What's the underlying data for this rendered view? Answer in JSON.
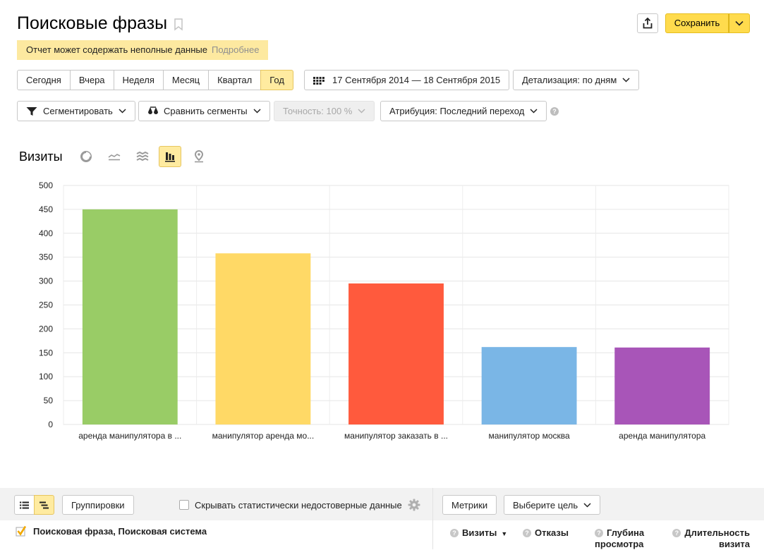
{
  "header": {
    "title": "Поисковые фразы",
    "save_label": "Сохранить"
  },
  "warning": {
    "text": "Отчет может содержать неполные данные",
    "link": "Подробнее"
  },
  "period": {
    "options": [
      "Сегодня",
      "Вчера",
      "Неделя",
      "Месяц",
      "Квартал",
      "Год"
    ],
    "active": "Год",
    "date_range": "17 Сентября 2014 — 18 Сентября 2015",
    "detail": "Детализация: по дням"
  },
  "filters": {
    "segment": "Сегментировать",
    "compare": "Сравнить сегменты",
    "accuracy": "Точность: 100 %",
    "attribution": "Атрибуция: Последний переход"
  },
  "chart_header": {
    "title": "Визиты",
    "types": [
      "pie-chart-icon",
      "line-chart-icon",
      "stacked-area-icon",
      "bar-chart-icon",
      "map-pin-icon"
    ],
    "active_type": "bar-chart-icon"
  },
  "chart_data": {
    "type": "bar",
    "categories": [
      "аренда манипулятора в ...",
      "манипулятор аренда мо...",
      "манипулятор заказать в ...",
      "манипулятор москва",
      "аренда манипулятора"
    ],
    "values": [
      450,
      358,
      295,
      162,
      161
    ],
    "colors": [
      "#99cc66",
      "#ffd966",
      "#ff5a3d",
      "#7ab6e6",
      "#a855b8"
    ],
    "title": "",
    "xlabel": "",
    "ylabel": "",
    "ylim": [
      0,
      500
    ],
    "yticks": [
      "0",
      "50",
      "100",
      "150",
      "200",
      "250",
      "300",
      "350",
      "400",
      "450",
      "500"
    ],
    "grid": true
  },
  "toolbar": {
    "groupings": "Группировки",
    "hide_unreliable": "Скрывать статистически недостоверные данные",
    "metrics": "Метрики",
    "goal": "Выберите цель"
  },
  "table": {
    "dimensions": "Поисковая фраза, Поисковая система",
    "columns": [
      {
        "label": "Визиты",
        "sorted": true
      },
      {
        "label": "Отказы"
      },
      {
        "label": "Глубина просмотра"
      },
      {
        "label": "Длительность визита"
      }
    ]
  }
}
